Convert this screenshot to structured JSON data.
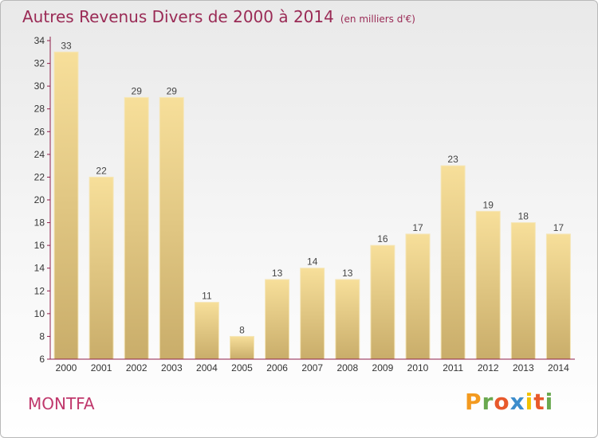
{
  "header": {
    "title": "Autres Revenus Divers de 2000 à 2014",
    "subtitle": "(en milliers d'€)"
  },
  "footer": {
    "city": "MONTFA",
    "logo_letters": [
      "P",
      "r",
      "o",
      "x",
      "i",
      "t",
      "i"
    ]
  },
  "colors": {
    "title": "#9a2a55",
    "city": "#c0386c",
    "bar_light": "#f7df9a",
    "bar_dark": "#c9ad6a",
    "axis": "#8f1f4a",
    "logo": [
      "#f39a1f",
      "#6aa84f",
      "#e8592b",
      "#3c8dcc",
      "#f2c200",
      "#e8592b",
      "#6aa84f"
    ]
  },
  "chart_data": {
    "type": "bar",
    "categories": [
      "2000",
      "2001",
      "2002",
      "2003",
      "2004",
      "2005",
      "2006",
      "2007",
      "2008",
      "2009",
      "2010",
      "2011",
      "2012",
      "2013",
      "2014"
    ],
    "values": [
      33,
      22,
      29,
      29,
      11,
      8,
      13,
      14,
      13,
      16,
      17,
      23,
      19,
      18,
      17
    ],
    "value_labels": [
      "33",
      "22",
      "29",
      "29",
      "11",
      "8",
      "13",
      "14",
      "13",
      "16",
      "17",
      "23",
      "19",
      "18",
      "17"
    ],
    "yticks": [
      "6",
      "8",
      "10",
      "12",
      "14",
      "16",
      "18",
      "20",
      "22",
      "24",
      "26",
      "28",
      "30",
      "32",
      "34"
    ],
    "ylim": [
      6,
      34
    ],
    "grid": false,
    "xlabel": "",
    "ylabel": ""
  }
}
